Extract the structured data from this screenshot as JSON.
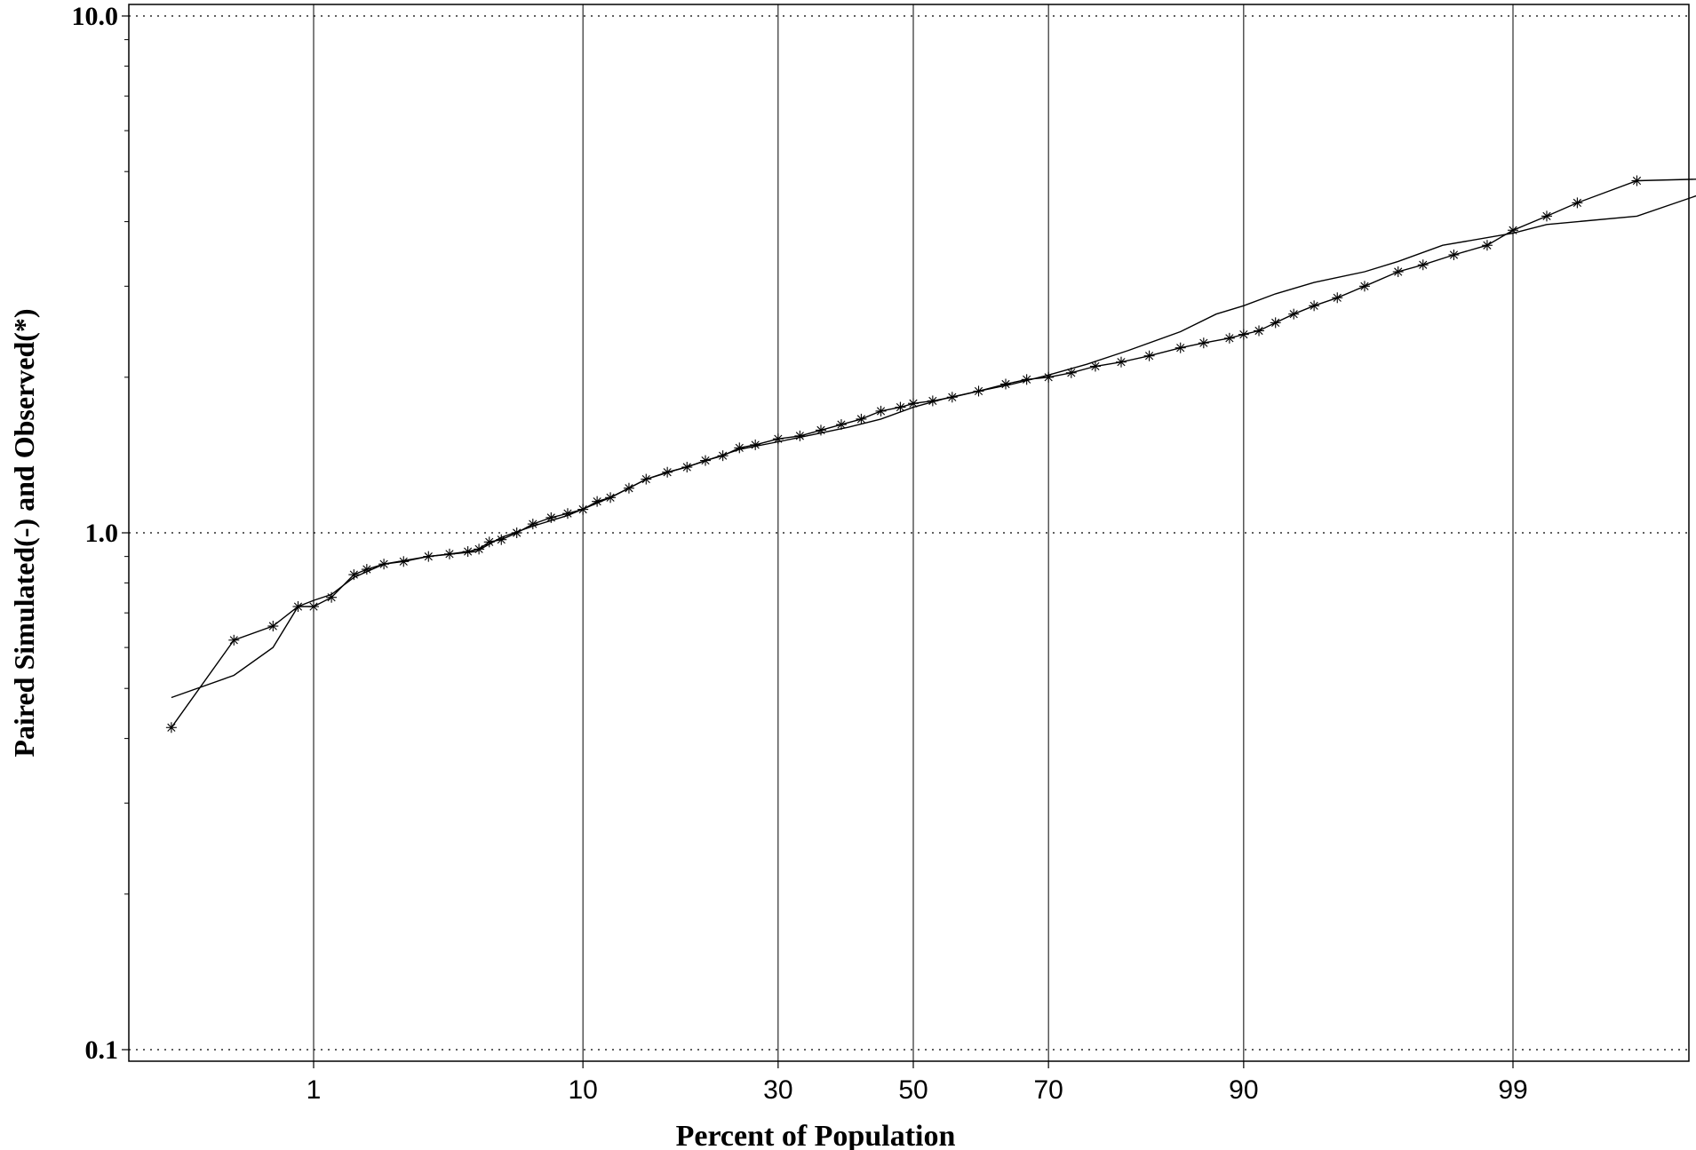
{
  "chart_data": {
    "type": "line",
    "title": "",
    "xlabel": "Percent of Population",
    "ylabel": "Paired Simulated(-) and Observed(*)",
    "y_scale": "log",
    "x_scale": "normal-probability",
    "ylim": [
      0.1,
      10.0
    ],
    "y_ticks": [
      0.1,
      1.0,
      10.0
    ],
    "y_tick_labels": [
      "0.1",
      "1.0",
      "10.0"
    ],
    "x_ticks": [
      1,
      10,
      30,
      50,
      70,
      90,
      99
    ],
    "x_tick_labels": [
      "1",
      "10",
      "30",
      "50",
      "70",
      "90",
      "99"
    ],
    "grid": {
      "x": "solid vertical lines at x ticks",
      "y": "dotted horizontal lines at y ticks"
    },
    "series": [
      {
        "name": "Simulated",
        "marker": "none",
        "points": [
          [
            0.2,
            0.48
          ],
          [
            0.42,
            0.53
          ],
          [
            0.65,
            0.6
          ],
          [
            0.85,
            0.72
          ],
          [
            1.0,
            0.74
          ],
          [
            1.2,
            0.76
          ],
          [
            1.5,
            0.82
          ],
          [
            2.0,
            0.87
          ],
          [
            3.0,
            0.9
          ],
          [
            4.5,
            0.92
          ],
          [
            5.5,
            0.98
          ],
          [
            7.0,
            1.03
          ],
          [
            9.0,
            1.08
          ],
          [
            12.0,
            1.17
          ],
          [
            15.0,
            1.27
          ],
          [
            20.0,
            1.36
          ],
          [
            25.0,
            1.45
          ],
          [
            30.0,
            1.5
          ],
          [
            35.0,
            1.55
          ],
          [
            40.0,
            1.6
          ],
          [
            45.0,
            1.66
          ],
          [
            50.0,
            1.75
          ],
          [
            55.0,
            1.82
          ],
          [
            60.0,
            1.88
          ],
          [
            65.0,
            1.94
          ],
          [
            70.0,
            2.02
          ],
          [
            75.0,
            2.12
          ],
          [
            80.0,
            2.26
          ],
          [
            85.0,
            2.45
          ],
          [
            88.0,
            2.65
          ],
          [
            90.0,
            2.75
          ],
          [
            92.0,
            2.9
          ],
          [
            94.0,
            3.05
          ],
          [
            96.0,
            3.2
          ],
          [
            97.0,
            3.35
          ],
          [
            98.0,
            3.6
          ],
          [
            99.0,
            3.8
          ],
          [
            99.3,
            3.95
          ],
          [
            99.75,
            4.1
          ],
          [
            99.92,
            4.7
          ]
        ]
      },
      {
        "name": "Observed",
        "marker": "*",
        "points": [
          [
            0.2,
            0.42
          ],
          [
            0.42,
            0.62
          ],
          [
            0.65,
            0.66
          ],
          [
            0.85,
            0.72
          ],
          [
            1.0,
            0.72
          ],
          [
            1.2,
            0.75
          ],
          [
            1.5,
            0.83
          ],
          [
            1.7,
            0.85
          ],
          [
            2.0,
            0.87
          ],
          [
            2.4,
            0.88
          ],
          [
            3.0,
            0.9
          ],
          [
            3.6,
            0.91
          ],
          [
            4.2,
            0.92
          ],
          [
            4.6,
            0.93
          ],
          [
            5.0,
            0.96
          ],
          [
            5.5,
            0.97
          ],
          [
            6.2,
            1.0
          ],
          [
            7.0,
            1.04
          ],
          [
            8.0,
            1.07
          ],
          [
            9.0,
            1.09
          ],
          [
            10.0,
            1.11
          ],
          [
            11.0,
            1.15
          ],
          [
            12.0,
            1.17
          ],
          [
            13.5,
            1.22
          ],
          [
            15.0,
            1.27
          ],
          [
            17.0,
            1.31
          ],
          [
            19.0,
            1.34
          ],
          [
            21.0,
            1.38
          ],
          [
            23.0,
            1.41
          ],
          [
            25.0,
            1.46
          ],
          [
            27.0,
            1.48
          ],
          [
            30.0,
            1.52
          ],
          [
            33.0,
            1.54
          ],
          [
            36.0,
            1.58
          ],
          [
            39.0,
            1.62
          ],
          [
            42.0,
            1.66
          ],
          [
            45.0,
            1.72
          ],
          [
            48.0,
            1.75
          ],
          [
            50.0,
            1.78
          ],
          [
            53.0,
            1.8
          ],
          [
            56.0,
            1.83
          ],
          [
            60.0,
            1.88
          ],
          [
            64.0,
            1.94
          ],
          [
            67.0,
            1.98
          ],
          [
            70.0,
            2.0
          ],
          [
            73.0,
            2.04
          ],
          [
            76.0,
            2.1
          ],
          [
            79.0,
            2.14
          ],
          [
            82.0,
            2.2
          ],
          [
            85.0,
            2.28
          ],
          [
            87.0,
            2.33
          ],
          [
            89.0,
            2.38
          ],
          [
            90.0,
            2.42
          ],
          [
            91.0,
            2.46
          ],
          [
            92.0,
            2.55
          ],
          [
            93.0,
            2.65
          ],
          [
            94.0,
            2.75
          ],
          [
            95.0,
            2.85
          ],
          [
            96.0,
            3.0
          ],
          [
            97.0,
            3.2
          ],
          [
            97.6,
            3.3
          ],
          [
            98.2,
            3.45
          ],
          [
            98.7,
            3.6
          ],
          [
            99.0,
            3.85
          ],
          [
            99.3,
            4.1
          ],
          [
            99.5,
            4.35
          ],
          [
            99.75,
            4.8
          ],
          [
            99.92,
            4.85
          ]
        ]
      }
    ]
  }
}
